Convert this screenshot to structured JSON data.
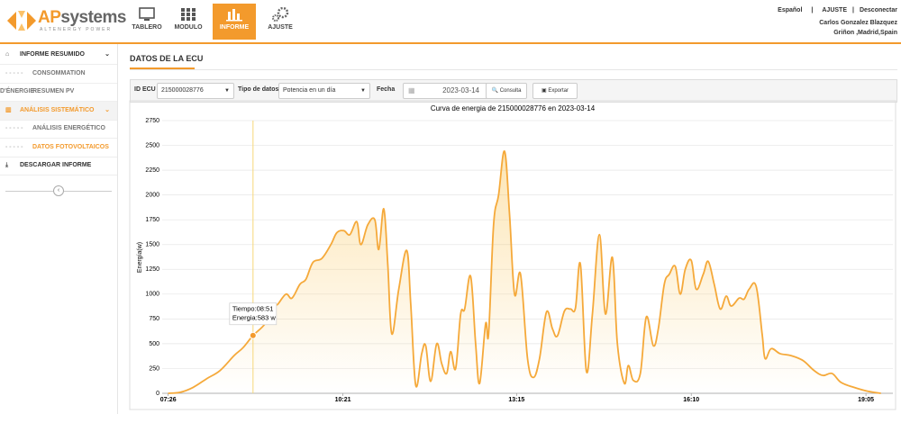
{
  "header": {
    "brand_a": "AP",
    "brand_b": "systems",
    "tagline": "ALTENERGY POWER",
    "nav": [
      "TABLERO",
      "MODULO",
      "INFORME",
      "AJUSTE"
    ],
    "links": [
      "Español",
      "AJUSTE",
      "Desconectar"
    ],
    "user": "Carlos Gonzalez Blazquez",
    "location": "Griñon ,Madrid,Spain"
  },
  "sidebar": {
    "items": [
      {
        "label": "INFORME RESUMIDO",
        "level": 1
      },
      {
        "label": "CONSOMMATION D'ÉNERGIE",
        "level": 2
      },
      {
        "label": "RESUMEN PV",
        "level": 2
      },
      {
        "label": "ANÁLISIS SISTEMÁTICO",
        "level": 1,
        "active": true
      },
      {
        "label": "ANÁLISIS ENERGÉTICO",
        "level": 2
      },
      {
        "label": "DATOS FOTOVOLTAICOS",
        "level": 2,
        "active": true
      },
      {
        "label": "DESCARGAR INFORME",
        "level": 1
      }
    ]
  },
  "page_title": "DATOS DE LA ECU",
  "toolbar": {
    "ecu_label": "ID ECU",
    "ecu_value": "215000028776",
    "type_label": "Tipo de datos",
    "type_value": "Potencia en un día",
    "date_label": "Fecha",
    "date_value": "2023-03-14",
    "query": "Consulta",
    "export": "Exportar"
  },
  "chart_data": {
    "type": "line",
    "title": "Curva de energia de 215000028776 en 2023-03-14",
    "y_label": "Energía(w)",
    "x": [
      "07:26",
      "07:38",
      "07:51",
      "08:05",
      "08:18",
      "08:32",
      "08:41",
      "08:51",
      "09:03",
      "09:12",
      "09:16",
      "09:24",
      "09:30",
      "09:38",
      "09:44",
      "09:51",
      "10:00",
      "10:09",
      "10:15",
      "10:22",
      "10:28",
      "10:35",
      "10:39",
      "10:46",
      "10:53",
      "10:57",
      "11:02",
      "11:06",
      "11:10",
      "11:17",
      "11:25",
      "11:29",
      "11:34",
      "11:40",
      "11:44",
      "11:49",
      "11:55",
      "12:00",
      "12:05",
      "12:09",
      "12:14",
      "12:19",
      "12:23",
      "12:29",
      "12:34",
      "12:38",
      "12:44",
      "12:47",
      "12:52",
      "12:57",
      "13:03",
      "13:08",
      "13:13",
      "13:19",
      "13:26",
      "13:32",
      "13:38",
      "13:45",
      "13:51",
      "13:56",
      "14:03",
      "14:09",
      "14:14",
      "14:19",
      "14:25",
      "14:31",
      "14:38",
      "14:44",
      "14:51",
      "14:56",
      "15:03",
      "15:07",
      "15:12",
      "15:19",
      "15:25",
      "15:32",
      "15:37",
      "15:43",
      "15:48",
      "15:54",
      "15:59",
      "16:04",
      "16:10",
      "16:15",
      "16:22",
      "16:27",
      "16:33",
      "16:39",
      "16:45",
      "16:50",
      "16:58",
      "17:03",
      "17:08",
      "17:15",
      "17:21",
      "17:24",
      "17:30",
      "17:39",
      "17:50",
      "18:02",
      "18:13",
      "18:22",
      "18:31",
      "18:40",
      "18:53",
      "19:07",
      "19:20"
    ],
    "series": [
      {
        "name": "Energía",
        "color": "#f5a93a",
        "values": [
          0,
          10,
          60,
          150,
          230,
          380,
          460,
          583,
          700,
          870,
          900,
          1000,
          960,
          1100,
          1150,
          1320,
          1360,
          1500,
          1620,
          1640,
          1600,
          1730,
          1500,
          1700,
          1750,
          1450,
          1860,
          1300,
          600,
          1050,
          1440,
          900,
          80,
          400,
          480,
          120,
          500,
          300,
          200,
          420,
          250,
          800,
          850,
          1180,
          500,
          100,
          700,
          600,
          1700,
          2000,
          2440,
          1800,
          1000,
          1200,
          350,
          160,
          350,
          820,
          650,
          580,
          830,
          850,
          860,
          1300,
          220,
          800,
          1600,
          800,
          1370,
          500,
          100,
          280,
          130,
          200,
          770,
          480,
          650,
          1100,
          1200,
          1280,
          1000,
          1250,
          1340,
          1050,
          1200,
          1330,
          1100,
          850,
          980,
          880,
          960,
          950,
          1050,
          1080,
          600,
          350,
          450,
          400,
          380,
          330,
          230,
          180,
          200,
          110,
          60,
          20,
          0
        ]
      }
    ],
    "xlim": [
      "07:20",
      "19:32"
    ],
    "xticks": [
      "07:26",
      "10:21",
      "13:15",
      "16:10",
      "19:05"
    ],
    "ylim": [
      0,
      2750
    ],
    "yticks": [
      0,
      250,
      500,
      750,
      1000,
      1250,
      1500,
      1750,
      2000,
      2250,
      2500,
      2750
    ],
    "grid": true,
    "tooltip": {
      "index": 7,
      "time": "Tiempo:08:51",
      "energy": "Energia:583 w"
    }
  }
}
